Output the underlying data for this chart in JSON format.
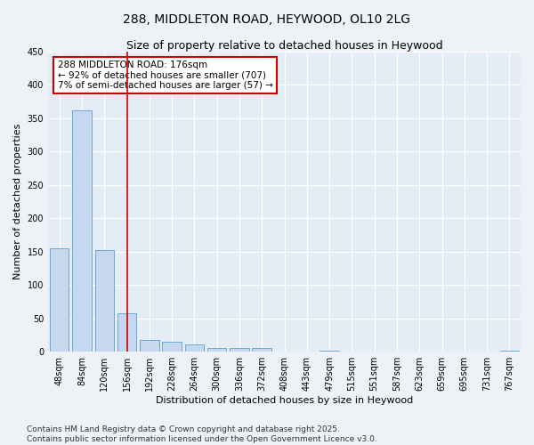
{
  "title": "288, MIDDLETON ROAD, HEYWOOD, OL10 2LG",
  "subtitle": "Size of property relative to detached houses in Heywood",
  "xlabel": "Distribution of detached houses by size in Heywood",
  "ylabel": "Number of detached properties",
  "categories": [
    "48sqm",
    "84sqm",
    "120sqm",
    "156sqm",
    "192sqm",
    "228sqm",
    "264sqm",
    "300sqm",
    "336sqm",
    "372sqm",
    "408sqm",
    "443sqm",
    "479sqm",
    "515sqm",
    "551sqm",
    "587sqm",
    "623sqm",
    "659sqm",
    "695sqm",
    "731sqm",
    "767sqm"
  ],
  "values": [
    155,
    362,
    153,
    57,
    18,
    15,
    11,
    6,
    5,
    5,
    0,
    0,
    2,
    0,
    0,
    0,
    0,
    0,
    0,
    0,
    2
  ],
  "bar_color": "#c5d8ed",
  "bar_edge_color": "#5a9fd4",
  "vline_x_index": 3,
  "vline_color": "#cc0000",
  "annotation_text": "288 MIDDLETON ROAD: 176sqm\n← 92% of detached houses are smaller (707)\n7% of semi-detached houses are larger (57) →",
  "annotation_box_color": "#ffffff",
  "annotation_box_edge_color": "#cc0000",
  "ylim": [
    0,
    450
  ],
  "yticks": [
    0,
    50,
    100,
    150,
    200,
    250,
    300,
    350,
    400,
    450
  ],
  "footer_text": "Contains HM Land Registry data © Crown copyright and database right 2025.\nContains public sector information licensed under the Open Government Licence v3.0.",
  "bg_color": "#eef2f7",
  "plot_bg_color": "#e4edf6",
  "grid_color": "#ffffff",
  "title_fontsize": 10,
  "subtitle_fontsize": 9,
  "tick_fontsize": 7,
  "ylabel_fontsize": 8,
  "xlabel_fontsize": 8,
  "annotation_fontsize": 7.5,
  "footer_fontsize": 6.5
}
